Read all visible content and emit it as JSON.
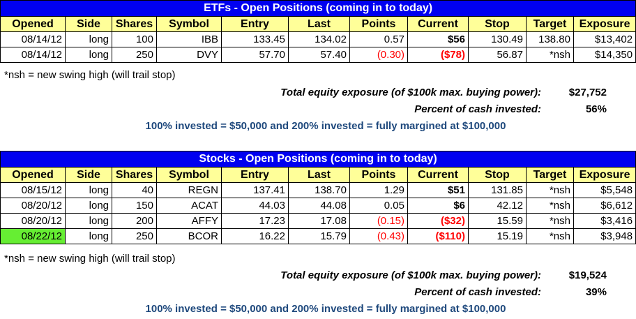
{
  "headers": [
    "Opened",
    "Side",
    "Shares",
    "Symbol",
    "Entry",
    "Last",
    "Points",
    "Current",
    "Stop",
    "Target",
    "Exposure"
  ],
  "etf": {
    "title": "ETFs - Open Positions (coming in to today)",
    "rows": [
      [
        "08/14/12",
        "long",
        "100",
        "IBB",
        "133.45",
        "134.02",
        "0.57",
        "$56",
        "130.49",
        "138.80",
        "$13,402"
      ],
      [
        "08/14/12",
        "long",
        "250",
        "DVY",
        "57.70",
        "57.40",
        "(0.30)",
        "($78)",
        "56.87",
        "*nsh",
        "$14,350"
      ]
    ],
    "note": "*nsh = new swing high (will trail stop)",
    "exposure_label": "Total equity exposure (of $100k max. buying power):",
    "exposure_value": "$27,752",
    "percent_label": "Percent of cash invested:",
    "percent_value": "56%",
    "margin_note": "100% invested = $50,000 and 200% invested = fully margined at $100,000"
  },
  "stocks": {
    "title": "Stocks - Open Positions (coming in to today)",
    "rows": [
      [
        "08/15/12",
        "long",
        "40",
        "REGN",
        "137.41",
        "138.70",
        "1.29",
        "$51",
        "131.85",
        "*nsh",
        "$5,548"
      ],
      [
        "08/20/12",
        "long",
        "150",
        "ACAT",
        "44.03",
        "44.08",
        "0.05",
        "$6",
        "42.12",
        "*nsh",
        "$6,612"
      ],
      [
        "08/20/12",
        "long",
        "200",
        "AFFY",
        "17.23",
        "17.08",
        "(0.15)",
        "($32)",
        "15.59",
        "*nsh",
        "$3,416"
      ],
      [
        "08/22/12",
        "long",
        "250",
        "BCOR",
        "16.22",
        "15.79",
        "(0.43)",
        "($110)",
        "15.19",
        "*nsh",
        "$3,948"
      ]
    ],
    "note": "*nsh = new swing high (will trail stop)",
    "exposure_label": "Total equity exposure (of $100k max. buying power):",
    "exposure_value": "$19,524",
    "percent_label": "Percent of cash invested:",
    "percent_value": "39%",
    "margin_note": "100% invested = $50,000 and 200% invested = fully margined at $100,000"
  },
  "colors": {
    "title_bg": "#0000f0",
    "header_bg": "#ffff99",
    "negative": "#ff0000",
    "highlight": "#66ee33",
    "margin_note": "#1f497d"
  }
}
